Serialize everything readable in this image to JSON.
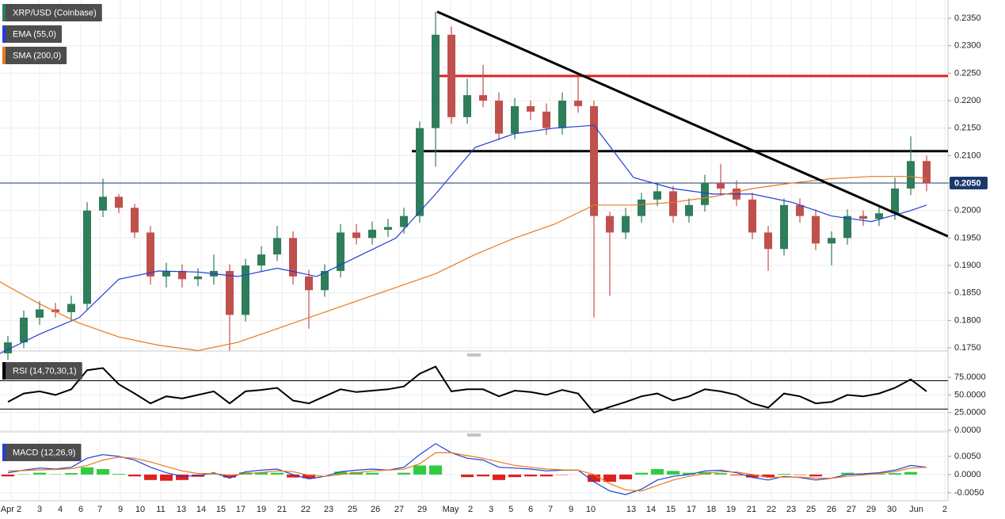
{
  "chart_data": [
    {
      "type": "candlestick",
      "title": "XRP/USD (Coinbase)",
      "x": [
        1,
        3,
        5,
        7,
        9,
        11,
        13,
        15,
        17,
        19,
        21,
        23,
        25,
        27,
        29,
        31,
        33,
        35,
        37,
        39,
        41,
        43,
        45,
        47,
        49,
        51,
        53,
        55,
        57,
        59,
        61,
        63,
        65,
        67,
        69,
        71,
        73,
        75,
        77,
        79,
        81,
        83,
        85,
        87,
        89,
        91,
        93,
        95,
        97,
        99,
        101,
        103,
        105,
        107,
        109,
        111,
        113,
        115,
        117
      ],
      "open": [
        0.174,
        0.176,
        0.1805,
        0.182,
        0.1815,
        0.183,
        0.2,
        0.2025,
        0.2005,
        0.196,
        0.188,
        0.189,
        0.1875,
        0.188,
        0.189,
        0.181,
        0.19,
        0.192,
        0.195,
        0.188,
        0.1855,
        0.189,
        0.196,
        0.195,
        0.1965,
        0.197,
        0.199,
        0.215,
        0.232,
        0.217,
        0.221,
        0.22,
        0.214,
        0.219,
        0.218,
        0.215,
        0.22,
        0.219,
        0.199,
        0.196,
        0.199,
        0.202,
        0.2035,
        0.199,
        0.201,
        0.205,
        0.204,
        0.202,
        0.196,
        0.193,
        0.201,
        0.199,
        0.194,
        0.195,
        0.199,
        0.1985,
        0.1995,
        0.204,
        0.209
      ],
      "high": [
        0.1772,
        0.1818,
        0.1835,
        0.1832,
        0.1845,
        0.2015,
        0.2058,
        0.203,
        0.2012,
        0.1972,
        0.1905,
        0.1902,
        0.1895,
        0.192,
        0.1902,
        0.1912,
        0.1935,
        0.1972,
        0.1962,
        0.1892,
        0.1902,
        0.1975,
        0.1975,
        0.198,
        0.1985,
        0.2005,
        0.2162,
        0.2362,
        0.2335,
        0.224,
        0.2265,
        0.2215,
        0.2205,
        0.22,
        0.2195,
        0.2215,
        0.2245,
        0.22,
        0.1998,
        0.2005,
        0.2032,
        0.205,
        0.2045,
        0.2022,
        0.2065,
        0.2085,
        0.2055,
        0.2032,
        0.1972,
        0.2022,
        0.2022,
        0.2002,
        0.1962,
        0.2002,
        0.2,
        0.201,
        0.206,
        0.2135,
        0.21
      ],
      "low": [
        0.1728,
        0.175,
        0.1792,
        0.1805,
        0.18,
        0.182,
        0.1988,
        0.1995,
        0.195,
        0.1865,
        0.186,
        0.186,
        0.1862,
        0.1865,
        0.1745,
        0.1798,
        0.1888,
        0.1908,
        0.1865,
        0.1785,
        0.1843,
        0.1878,
        0.1938,
        0.1938,
        0.1952,
        0.1958,
        0.1978,
        0.208,
        0.2158,
        0.2158,
        0.2188,
        0.2128,
        0.213,
        0.2165,
        0.2138,
        0.2138,
        0.2178,
        0.1805,
        0.1845,
        0.1948,
        0.1978,
        0.2008,
        0.1978,
        0.1978,
        0.1998,
        0.2028,
        0.2008,
        0.1948,
        0.189,
        0.1918,
        0.1978,
        0.1928,
        0.19,
        0.1938,
        0.1972,
        0.1972,
        0.1983,
        0.2028,
        0.2035
      ],
      "close": [
        0.176,
        0.1805,
        0.182,
        0.1815,
        0.183,
        0.2,
        0.2025,
        0.2005,
        0.196,
        0.188,
        0.189,
        0.1875,
        0.188,
        0.189,
        0.181,
        0.19,
        0.192,
        0.195,
        0.188,
        0.1855,
        0.189,
        0.196,
        0.195,
        0.1965,
        0.197,
        0.199,
        0.215,
        0.232,
        0.217,
        0.221,
        0.22,
        0.214,
        0.219,
        0.218,
        0.215,
        0.22,
        0.219,
        0.199,
        0.196,
        0.199,
        0.202,
        0.2035,
        0.199,
        0.201,
        0.205,
        0.204,
        0.202,
        0.196,
        0.193,
        0.201,
        0.199,
        0.194,
        0.195,
        0.199,
        0.1985,
        0.1995,
        0.204,
        0.209,
        0.205
      ],
      "up_color": "#2e7d5b",
      "down_color": "#c0504d",
      "overlays": [
        {
          "name": "EMA (55,0)",
          "color": "#1f3fd6",
          "x": [
            0,
            5,
            10,
            15,
            20,
            25,
            30,
            35,
            40,
            45,
            50,
            55,
            60,
            65,
            70,
            75,
            80,
            85,
            90,
            95,
            100,
            105,
            110,
            115,
            117
          ],
          "values": [
            0.174,
            0.1775,
            0.1805,
            0.1875,
            0.189,
            0.1888,
            0.188,
            0.1895,
            0.188,
            0.1915,
            0.195,
            0.203,
            0.2115,
            0.214,
            0.215,
            0.2155,
            0.206,
            0.204,
            0.203,
            0.203,
            0.2015,
            0.199,
            0.198,
            0.2,
            0.201
          ]
        },
        {
          "name": "SMA (200,0)",
          "color": "#e8791e",
          "x": [
            0,
            5,
            10,
            15,
            20,
            25,
            30,
            35,
            40,
            45,
            50,
            55,
            60,
            65,
            70,
            75,
            80,
            85,
            90,
            95,
            100,
            105,
            110,
            115,
            117
          ],
          "values": [
            0.187,
            0.183,
            0.1795,
            0.177,
            0.1755,
            0.1745,
            0.176,
            0.1785,
            0.181,
            0.1835,
            0.186,
            0.1885,
            0.192,
            0.195,
            0.1975,
            0.201,
            0.201,
            0.2015,
            0.2025,
            0.204,
            0.205,
            0.2058,
            0.2062,
            0.2062,
            0.2058
          ]
        }
      ],
      "trendlines": [
        {
          "x": [
            55.2,
            119.7
          ],
          "y": [
            0.2362,
            0.1953
          ],
          "color": "#000000"
        }
      ],
      "levels": [
        {
          "value": 0.2245,
          "from": 54.5,
          "color": "#e02020"
        },
        {
          "value": 0.2108,
          "from": 52,
          "color": "#000000"
        }
      ],
      "last_price": {
        "value": 0.205,
        "label": "0.2050",
        "color": "#1a3a6e"
      },
      "xlim": [
        0,
        119.7
      ],
      "ylim": [
        0.17457,
        0.23832
      ],
      "xticks": [
        {
          "value": 1.4,
          "label": "Apr 2"
        },
        {
          "value": 5,
          "label": "3"
        },
        {
          "value": 7.6,
          "label": "4"
        },
        {
          "value": 10.2,
          "label": "6"
        },
        {
          "value": 12.6,
          "label": "7"
        },
        {
          "value": 15.2,
          "label": "9"
        },
        {
          "value": 17.7,
          "label": "10"
        },
        {
          "value": 20.3,
          "label": "11"
        },
        {
          "value": 22.9,
          "label": "13"
        },
        {
          "value": 25.4,
          "label": "14"
        },
        {
          "value": 27.9,
          "label": "15"
        },
        {
          "value": 30.4,
          "label": "17"
        },
        {
          "value": 33,
          "label": "19"
        },
        {
          "value": 35.6,
          "label": "21"
        },
        {
          "value": 38.6,
          "label": "22"
        },
        {
          "value": 41.5,
          "label": "23"
        },
        {
          "value": 44.5,
          "label": "25"
        },
        {
          "value": 47.4,
          "label": "26"
        },
        {
          "value": 50.4,
          "label": "27"
        },
        {
          "value": 53.3,
          "label": "29"
        },
        {
          "value": 56.9,
          "label": "May"
        },
        {
          "value": 59.4,
          "label": "2"
        },
        {
          "value": 62,
          "label": "3"
        },
        {
          "value": 64.5,
          "label": "5"
        },
        {
          "value": 67,
          "label": "6"
        },
        {
          "value": 69.5,
          "label": "7"
        },
        {
          "value": 72.1,
          "label": "9"
        },
        {
          "value": 74.6,
          "label": "10"
        },
        {
          "value": 79.7,
          "label": "13"
        },
        {
          "value": 82.2,
          "label": "14"
        },
        {
          "value": 84.7,
          "label": "15"
        },
        {
          "value": 87.3,
          "label": "17"
        },
        {
          "value": 89.8,
          "label": "18"
        },
        {
          "value": 92.3,
          "label": "19"
        },
        {
          "value": 94.9,
          "label": "21"
        },
        {
          "value": 97.4,
          "label": "22"
        },
        {
          "value": 99.9,
          "label": "23"
        },
        {
          "value": 102.4,
          "label": "25"
        },
        {
          "value": 105,
          "label": "26"
        },
        {
          "value": 107.5,
          "label": "27"
        },
        {
          "value": 110,
          "label": "29"
        },
        {
          "value": 112.6,
          "label": "30"
        },
        {
          "value": 115.7,
          "label": "Jun"
        },
        {
          "value": 119.3,
          "label": "2"
        }
      ],
      "yticks": [
        {
          "value": 0.175,
          "label": "0.1750"
        },
        {
          "value": 0.18,
          "label": "0.1800"
        },
        {
          "value": 0.185,
          "label": "0.1850"
        },
        {
          "value": 0.19,
          "label": "0.1900"
        },
        {
          "value": 0.195,
          "label": "0.1950"
        },
        {
          "value": 0.2,
          "label": "0.2000"
        },
        {
          "value": 0.205,
          "label": "0.2050"
        },
        {
          "value": 0.21,
          "label": "0.2100"
        },
        {
          "value": 0.215,
          "label": "0.2150"
        },
        {
          "value": 0.22,
          "label": "0.2200"
        },
        {
          "value": 0.225,
          "label": "0.2250"
        },
        {
          "value": 0.23,
          "label": "0.2300"
        },
        {
          "value": 0.235,
          "label": "0.2350"
        }
      ],
      "grid": true
    },
    {
      "type": "line",
      "title": "RSI (14,70,30,1)",
      "x": [
        1,
        3,
        5,
        7,
        9,
        11,
        13,
        15,
        17,
        19,
        21,
        23,
        25,
        27,
        29,
        31,
        33,
        35,
        37,
        39,
        41,
        43,
        45,
        47,
        49,
        51,
        53,
        55,
        57,
        59,
        61,
        63,
        65,
        67,
        69,
        71,
        73,
        75,
        77,
        79,
        81,
        83,
        85,
        87,
        89,
        91,
        93,
        95,
        97,
        99,
        101,
        103,
        105,
        107,
        109,
        111,
        113,
        115,
        117
      ],
      "series": [
        {
          "color": "#000000",
          "values": [
            40,
            52,
            55,
            50,
            58,
            85,
            88,
            65,
            52,
            38,
            48,
            45,
            50,
            55,
            38,
            55,
            57,
            60,
            42,
            38,
            48,
            58,
            54,
            56,
            58,
            62,
            80,
            90,
            55,
            58,
            58,
            48,
            56,
            54,
            50,
            57,
            52,
            25,
            33,
            40,
            48,
            52,
            42,
            48,
            58,
            55,
            50,
            38,
            32,
            52,
            48,
            38,
            40,
            50,
            48,
            52,
            60,
            72,
            55
          ]
        }
      ],
      "levels": [
        70,
        30
      ],
      "ylim": [
        0,
        102
      ],
      "yticks": [
        {
          "value": 0,
          "label": "0.0000"
        },
        {
          "value": 25,
          "label": "25.0000"
        },
        {
          "value": 50,
          "label": "50.0000"
        },
        {
          "value": 75,
          "label": "75.0000"
        }
      ]
    },
    {
      "type": "macd",
      "title": "MACD (12,26,9)",
      "x": [
        1,
        3,
        5,
        7,
        9,
        11,
        13,
        15,
        17,
        19,
        21,
        23,
        25,
        27,
        29,
        31,
        33,
        35,
        37,
        39,
        41,
        43,
        45,
        47,
        49,
        51,
        53,
        55,
        57,
        59,
        61,
        63,
        65,
        67,
        69,
        71,
        73,
        75,
        77,
        79,
        81,
        83,
        85,
        87,
        89,
        91,
        93,
        95,
        97,
        99,
        101,
        103,
        105,
        107,
        109,
        111,
        113,
        115,
        117
      ],
      "series": [
        {
          "color": "#1f3fd6",
          "values": [
            0.0005,
            0.0012,
            0.0018,
            0.0015,
            0.002,
            0.0045,
            0.0055,
            0.005,
            0.004,
            0.002,
            0.0005,
            -0.0005,
            -0.0003,
            0.0005,
            -0.001,
            0.0008,
            0.0012,
            0.0015,
            0.0,
            -0.0012,
            -0.0005,
            0.0008,
            0.0012,
            0.0015,
            0.0012,
            0.002,
            0.0055,
            0.0085,
            0.006,
            0.0045,
            0.004,
            0.002,
            0.0018,
            0.0015,
            0.001,
            0.0012,
            0.0012,
            -0.002,
            -0.0045,
            -0.0055,
            -0.004,
            -0.0015,
            -0.0005,
            0.0,
            0.001,
            0.0012,
            0.0005,
            -0.0008,
            -0.0015,
            -0.0005,
            -0.0008,
            -0.0015,
            -0.001,
            0.0,
            0.0002,
            0.0005,
            0.0012,
            0.0025,
            0.002
          ]
        },
        {
          "color": "#e8791e",
          "values": [
            0.001,
            0.0011,
            0.0013,
            0.0014,
            0.0016,
            0.0025,
            0.004,
            0.0048,
            0.0045,
            0.0035,
            0.0022,
            0.001,
            0.0003,
            0.0003,
            -0.0002,
            0.0002,
            0.0006,
            0.001,
            0.0008,
            -0.0002,
            -0.0005,
            0.0,
            0.0005,
            0.001,
            0.0012,
            0.0015,
            0.003,
            0.006,
            0.006,
            0.0052,
            0.0045,
            0.0035,
            0.0025,
            0.002,
            0.0015,
            0.0013,
            0.0012,
            0.0,
            -0.0025,
            -0.0042,
            -0.0045,
            -0.003,
            -0.0015,
            -0.0005,
            0.0003,
            0.0008,
            0.0007,
            0.0,
            -0.0008,
            -0.0007,
            -0.0007,
            -0.001,
            -0.001,
            -0.0005,
            -0.0001,
            0.0003,
            0.0008,
            0.0018,
            0.002
          ]
        }
      ],
      "histogram": {
        "up_color": "#2ecc40",
        "down_color": "#e02020",
        "values": [
          -0.0005,
          0.0001,
          0.0005,
          0.0001,
          0.0004,
          0.002,
          0.0015,
          0.0002,
          -0.0005,
          -0.0015,
          -0.0017,
          -0.0015,
          -0.0006,
          0.0002,
          -0.0008,
          0.0006,
          0.0006,
          0.0005,
          -0.0008,
          -0.001,
          0.0,
          0.0008,
          0.0007,
          0.0005,
          0.0,
          0.0005,
          0.0025,
          0.0025,
          0.0,
          -0.0007,
          -0.0005,
          -0.0015,
          -0.0007,
          -0.0005,
          -0.0005,
          -0.0001,
          0.0,
          -0.002,
          -0.002,
          -0.0013,
          0.0005,
          0.0015,
          0.001,
          0.0005,
          0.0007,
          0.0004,
          -0.0002,
          -0.0008,
          -0.0007,
          0.0002,
          -0.0001,
          -0.0005,
          0.0,
          0.0005,
          0.0003,
          0.0002,
          0.0004,
          0.0007,
          0.0
        ]
      },
      "ylim": [
        -0.0072,
        0.01
      ],
      "yticks": [
        {
          "value": -0.005,
          "label": "-0.0050"
        },
        {
          "value": 0,
          "label": "0.0000"
        },
        {
          "value": 0.005,
          "label": "0.0050"
        }
      ]
    }
  ]
}
